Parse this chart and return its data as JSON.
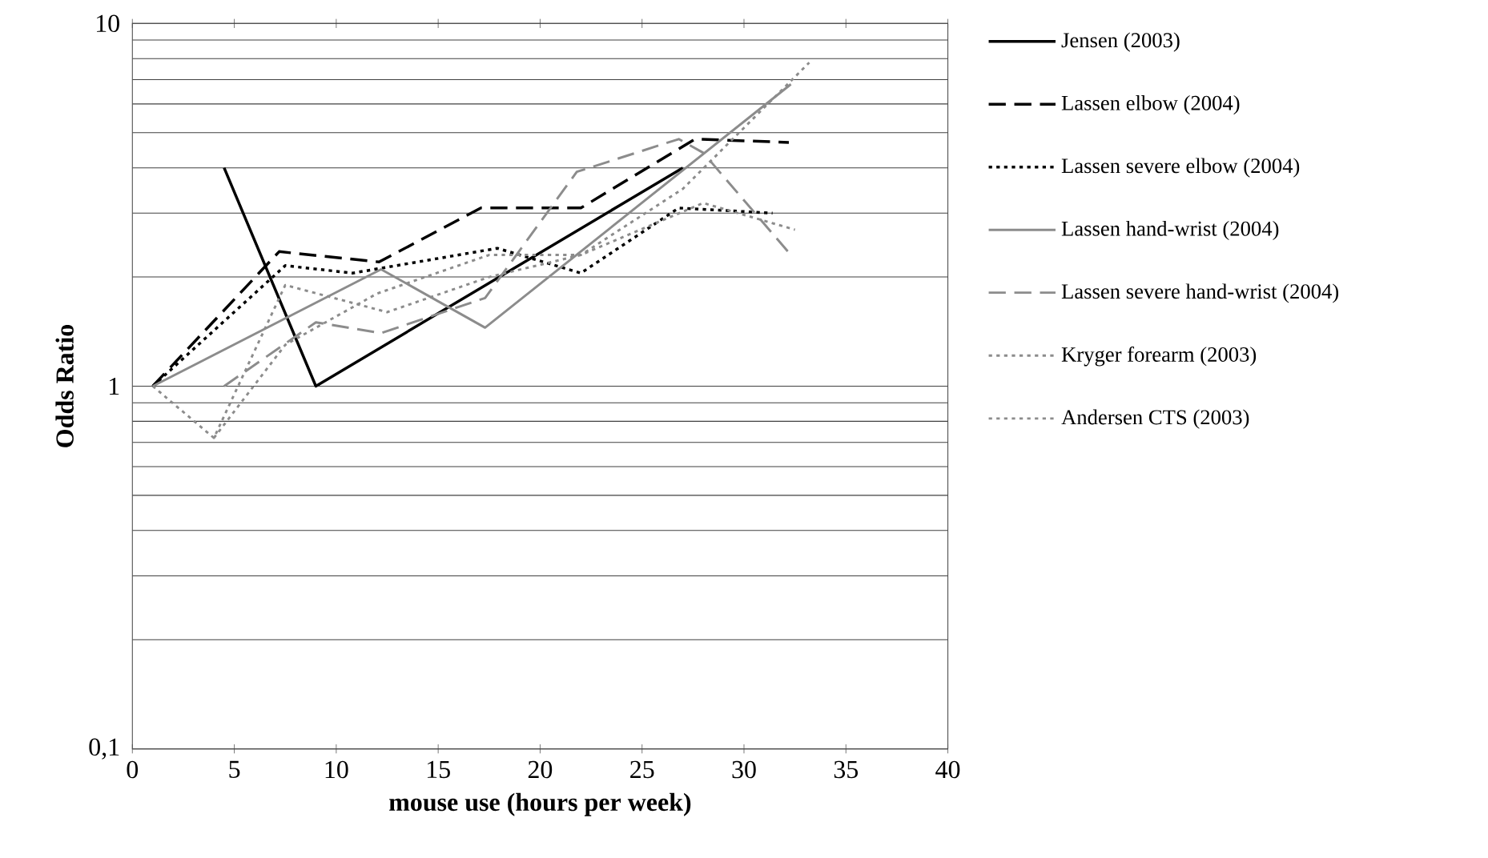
{
  "chart_data": {
    "type": "line",
    "xlabel": "mouse use (hours per week)",
    "ylabel": "Odds Ratio",
    "log": "y",
    "grid": "y",
    "legend": "right",
    "xlim": [
      0,
      40
    ],
    "xticks": [
      0,
      5,
      10,
      15,
      20,
      25,
      30,
      35,
      40
    ],
    "ylim": [
      0.1,
      10
    ],
    "yticks": [
      {
        "value": 0.1,
        "label": "0,1"
      },
      1,
      10
    ],
    "series": [
      {
        "name": "Jensen (2003)",
        "color": "#000000",
        "line_style": "solid",
        "x": [
          4.5,
          9,
          27
        ],
        "values": [
          4,
          1,
          4
        ]
      },
      {
        "name": "Lassen elbow (2004)",
        "color": "#000000",
        "line_style": "dashed",
        "x": [
          1,
          7.2,
          12.1,
          17.1,
          22,
          27.6,
          32.2
        ],
        "values": [
          1,
          2.35,
          2.2,
          3.1,
          3.1,
          4.8,
          4.7
        ]
      },
      {
        "name": "Lassen severe elbow (2004)",
        "color": "#000000",
        "line_style": "dotted",
        "x": [
          1,
          7.5,
          10.8,
          17.9,
          22,
          26.8,
          31.4
        ],
        "values": [
          1,
          2.15,
          2.05,
          2.4,
          2.05,
          3.1,
          3
        ]
      },
      {
        "name": "Lassen hand-wrist (2004)",
        "color": "#8c8c8c",
        "line_style": "solid",
        "x": [
          1,
          12.2,
          17.3,
          32.3
        ],
        "values": [
          1,
          2.1,
          1.45,
          6.8
        ]
      },
      {
        "name": "Lassen severe hand-wrist (2004)",
        "color": "#8c8c8c",
        "line_style": "dashed",
        "x": [
          4.5,
          9,
          12.2,
          17.3,
          21.8,
          26.8,
          28,
          32.3
        ],
        "values": [
          1,
          1.5,
          1.4,
          1.75,
          3.9,
          4.8,
          4.4,
          2.3
        ]
      },
      {
        "name": "Kryger forearm (2003)",
        "color": "#8c8c8c",
        "line_style": "dotted",
        "x": [
          4,
          7.5,
          12,
          17.5,
          22,
          27,
          33.2
        ],
        "values": [
          0.72,
          1.3,
          1.8,
          2.3,
          2.3,
          3.5,
          7.8
        ]
      },
      {
        "name": "Andersen CTS (2003)",
        "color": "#8c8c8c",
        "line_style": "dotted",
        "x": [
          1,
          4,
          7.5,
          12.5,
          17.5,
          22,
          28,
          32.5
        ],
        "values": [
          1,
          0.72,
          1.9,
          1.6,
          2,
          2.3,
          3.2,
          2.7
        ]
      }
    ]
  }
}
